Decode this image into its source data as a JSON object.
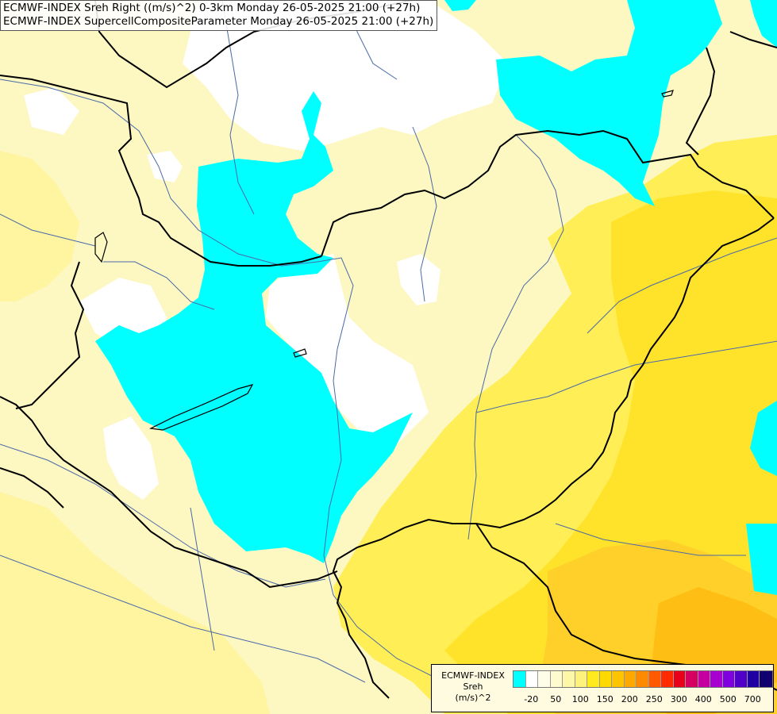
{
  "titles": {
    "line1": "ECMWF-INDEX Sreh Right ((m/s)^2) 0-3km Monday 26-05-2025 21:00 (+27h)",
    "line2": "ECMWF-INDEX SupercellCompositeParameter Monday 26-05-2025 21:00 (+27h)"
  },
  "legend": {
    "title_line1": "ECMWF-INDEX",
    "title_line2": "Sreh",
    "title_line3": "(m/s)^2",
    "colors": [
      "#00ffff",
      "#ffffff",
      "#fffde8",
      "#fffbd0",
      "#fff7a8",
      "#fff27a",
      "#ffea1e",
      "#ffda00",
      "#ffc400",
      "#ffa800",
      "#ff8a00",
      "#ff5a00",
      "#ff2a00",
      "#e8001a",
      "#d60060",
      "#c400a0",
      "#a800d0",
      "#8000e0",
      "#5000c8",
      "#2000a0",
      "#100070"
    ],
    "ticks": [
      {
        "label": "-20",
        "index": 1
      },
      {
        "label": "50",
        "index": 3
      },
      {
        "label": "100",
        "index": 5
      },
      {
        "label": "150",
        "index": 7
      },
      {
        "label": "200",
        "index": 9
      },
      {
        "label": "250",
        "index": 11
      },
      {
        "label": "300",
        "index": 13
      },
      {
        "label": "400",
        "index": 15
      },
      {
        "label": "500",
        "index": 17
      },
      {
        "label": "700",
        "index": 19
      }
    ]
  },
  "map_colors": {
    "cyan": "#00ffff",
    "white": "#ffffff",
    "pale_yellow": "#fdf7c2",
    "light_yellow": "#fff69a",
    "yellow": "#ffee55",
    "bright_yellow": "#ffe22a",
    "amber": "#ffd02a",
    "orange": "#ffbe14",
    "border": "#000000",
    "river": "#4a6aa8"
  }
}
